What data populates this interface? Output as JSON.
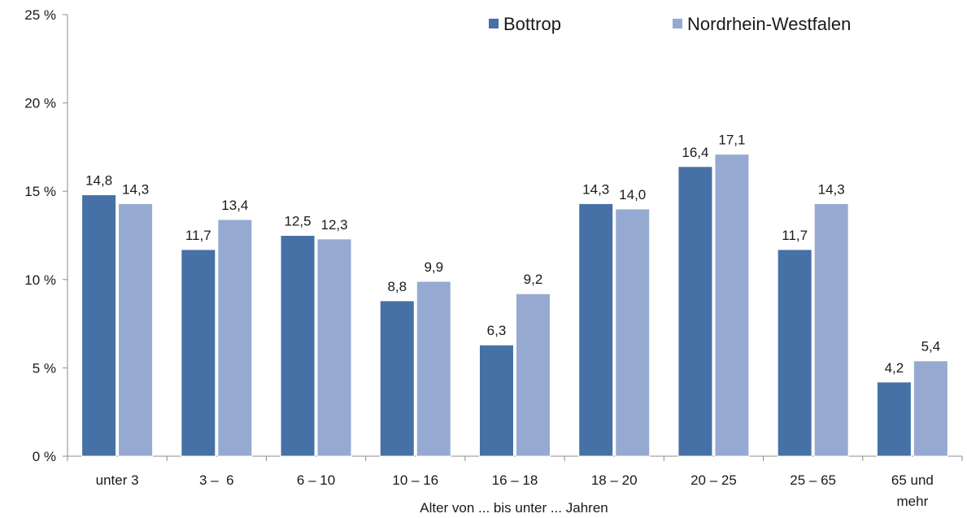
{
  "chart_data": {
    "type": "bar",
    "title": "",
    "xlabel": "Alter von ... bis unter ... Jahren",
    "ylabel": "",
    "ylim": [
      0,
      25
    ],
    "yticks": [
      0,
      5,
      10,
      15,
      20,
      25
    ],
    "ytick_labels": [
      "0 %",
      "5 %",
      "10 %",
      "15 %",
      "20 %",
      "25 %"
    ],
    "grid": false,
    "legend_position": "top-right",
    "categories": [
      "unter 3",
      "3 –  6",
      "6 – 10",
      "10 – 16",
      "16 – 18",
      "18 – 20",
      "20 – 25",
      "25 – 65",
      "65 und mehr"
    ],
    "series": [
      {
        "name": "Bottrop",
        "color": "#4671a6",
        "values": [
          14.8,
          11.7,
          12.5,
          8.8,
          6.3,
          14.3,
          16.4,
          11.7,
          4.2
        ],
        "labels": [
          "14,8",
          "11,7",
          "12,5",
          "8,8",
          "6,3",
          "14,3",
          "16,4",
          "11,7",
          "4,2"
        ]
      },
      {
        "name": "Nordrhein-Westfalen",
        "color": "#96aad1",
        "values": [
          14.3,
          13.4,
          12.3,
          9.9,
          9.2,
          14.0,
          17.1,
          14.3,
          5.4
        ],
        "labels": [
          "14,3",
          "13,4",
          "12,3",
          "9,9",
          "9,2",
          "14,0",
          "17,1",
          "14,3",
          "5,4"
        ]
      }
    ]
  }
}
